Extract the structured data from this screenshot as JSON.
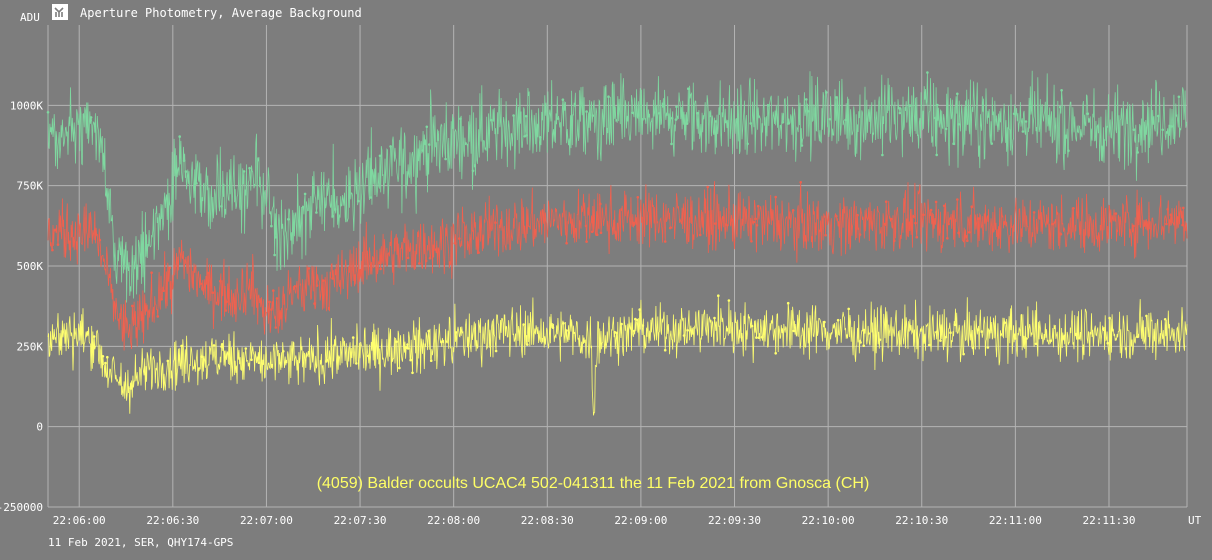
{
  "window": {
    "title": "Aperture Photometry, Average Background",
    "icon": "photometry-app-icon"
  },
  "footer": {
    "info": "11 Feb 2021, SER, QHY174-GPS"
  },
  "chart_data": {
    "type": "line",
    "title": "(4059) Balder occults UCAC4 502-041311 the 11 Feb 2021 from Gnosca (CH)",
    "ylabel": "ADU",
    "xlabel": "UT",
    "ylim": [
      -250000,
      1250000
    ],
    "y_ticks": [
      -250000,
      0,
      250000,
      500000,
      750000,
      1000000
    ],
    "y_tick_labels": [
      "-250000",
      "0",
      "250K",
      "500K",
      "750K",
      "1000K"
    ],
    "x_ticks": [
      "22:06:00",
      "22:06:30",
      "22:07:00",
      "22:07:30",
      "22:08:00",
      "22:08:30",
      "22:09:00",
      "22:09:30",
      "22:10:00",
      "22:10:30",
      "22:11:00",
      "22:11:30"
    ],
    "x_start": "22:05:50",
    "x_end": "22:11:55",
    "grid": true,
    "colors": {
      "background": "#7d7d7d",
      "grid": "#b4b4b4",
      "text": "#ffffff",
      "title": "#ffff66"
    },
    "series": [
      {
        "color": "#7fd8a0",
        "noise": 60000,
        "points": [
          [
            "22:05:50",
            900000
          ],
          [
            "22:06:00",
            920000
          ],
          [
            "22:06:05",
            930000
          ],
          [
            "22:06:07",
            860000
          ],
          [
            "22:06:10",
            650000
          ],
          [
            "22:06:12",
            520000
          ],
          [
            "22:06:15",
            460000
          ],
          [
            "22:06:18",
            480000
          ],
          [
            "22:06:22",
            580000
          ],
          [
            "22:06:25",
            640000
          ],
          [
            "22:06:28",
            680000
          ],
          [
            "22:06:32",
            800000
          ],
          [
            "22:06:35",
            790000
          ],
          [
            "22:06:40",
            730000
          ],
          [
            "22:06:45",
            720000
          ],
          [
            "22:06:50",
            700000
          ],
          [
            "22:06:55",
            760000
          ],
          [
            "22:06:57",
            790000
          ],
          [
            "22:07:00",
            680000
          ],
          [
            "22:07:05",
            580000
          ],
          [
            "22:07:10",
            640000
          ],
          [
            "22:07:15",
            690000
          ],
          [
            "22:07:20",
            700000
          ],
          [
            "22:07:25",
            710000
          ],
          [
            "22:07:30",
            760000
          ],
          [
            "22:07:35",
            770000
          ],
          [
            "22:07:40",
            800000
          ],
          [
            "22:07:45",
            820000
          ],
          [
            "22:07:50",
            870000
          ],
          [
            "22:08:00",
            890000
          ],
          [
            "22:08:10",
            920000
          ],
          [
            "22:08:20",
            935000
          ],
          [
            "22:08:40",
            950000
          ],
          [
            "22:09:00",
            960000
          ],
          [
            "22:09:30",
            950000
          ],
          [
            "22:10:00",
            960000
          ],
          [
            "22:10:30",
            960000
          ],
          [
            "22:11:00",
            950000
          ],
          [
            "22:11:30",
            930000
          ],
          [
            "22:11:55",
            970000
          ]
        ]
      },
      {
        "color": "#f0614f",
        "noise": 45000,
        "points": [
          [
            "22:05:50",
            600000
          ],
          [
            "22:06:00",
            610000
          ],
          [
            "22:06:05",
            600000
          ],
          [
            "22:06:08",
            520000
          ],
          [
            "22:06:10",
            420000
          ],
          [
            "22:06:14",
            310000
          ],
          [
            "22:06:18",
            300000
          ],
          [
            "22:06:22",
            360000
          ],
          [
            "22:06:26",
            420000
          ],
          [
            "22:06:30",
            460000
          ],
          [
            "22:06:33",
            530000
          ],
          [
            "22:06:36",
            490000
          ],
          [
            "22:06:40",
            430000
          ],
          [
            "22:06:45",
            420000
          ],
          [
            "22:06:50",
            410000
          ],
          [
            "22:06:55",
            450000
          ],
          [
            "22:06:58",
            380000
          ],
          [
            "22:07:02",
            340000
          ],
          [
            "22:07:06",
            380000
          ],
          [
            "22:07:10",
            420000
          ],
          [
            "22:07:15",
            450000
          ],
          [
            "22:07:20",
            440000
          ],
          [
            "22:07:25",
            460000
          ],
          [
            "22:07:30",
            510000
          ],
          [
            "22:07:40",
            540000
          ],
          [
            "22:07:50",
            560000
          ],
          [
            "22:08:00",
            580000
          ],
          [
            "22:08:15",
            620000
          ],
          [
            "22:08:30",
            640000
          ],
          [
            "22:09:00",
            650000
          ],
          [
            "22:09:30",
            640000
          ],
          [
            "22:10:00",
            630000
          ],
          [
            "22:10:30",
            640000
          ],
          [
            "22:11:00",
            630000
          ],
          [
            "22:11:30",
            630000
          ],
          [
            "22:11:55",
            650000
          ]
        ]
      },
      {
        "color": "#ffff70",
        "noise": 40000,
        "points": [
          [
            "22:05:50",
            280000
          ],
          [
            "22:06:00",
            285000
          ],
          [
            "22:06:05",
            270000
          ],
          [
            "22:06:10",
            160000
          ],
          [
            "22:06:15",
            120000
          ],
          [
            "22:06:20",
            160000
          ],
          [
            "22:06:25",
            190000
          ],
          [
            "22:06:30",
            200000
          ],
          [
            "22:06:40",
            210000
          ],
          [
            "22:06:50",
            220000
          ],
          [
            "22:07:00",
            200000
          ],
          [
            "22:07:10",
            200000
          ],
          [
            "22:07:20",
            220000
          ],
          [
            "22:07:30",
            230000
          ],
          [
            "22:07:40",
            240000
          ],
          [
            "22:07:50",
            250000
          ],
          [
            "22:08:00",
            270000
          ],
          [
            "22:08:10",
            290000
          ],
          [
            "22:08:20",
            300000
          ],
          [
            "22:08:30",
            290000
          ],
          [
            "22:08:40",
            280000
          ],
          [
            "22:08:44",
            275000
          ],
          [
            "22:08:45",
            40000
          ],
          [
            "22:08:46",
            275000
          ],
          [
            "22:09:00",
            300000
          ],
          [
            "22:09:30",
            310000
          ],
          [
            "22:10:00",
            300000
          ],
          [
            "22:10:30",
            290000
          ],
          [
            "22:11:00",
            290000
          ],
          [
            "22:11:30",
            290000
          ],
          [
            "22:11:55",
            295000
          ]
        ]
      }
    ]
  }
}
